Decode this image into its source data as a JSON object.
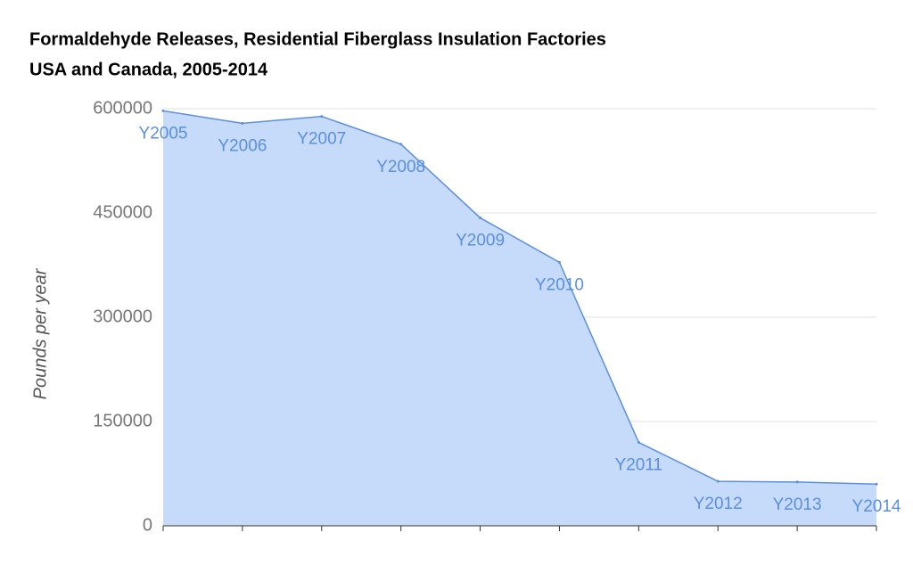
{
  "chart_data": {
    "type": "area",
    "title": "Formaldehyde Releases, Residential Fiberglass Insulation Factories",
    "subtitle": "USA and Canada, 2005-2014",
    "y_label": "Pounds per year",
    "categories": [
      "Y2005",
      "Y2006",
      "Y2007",
      "Y2008",
      "Y2009",
      "Y2010",
      "Y2011",
      "Y2012",
      "Y2013",
      "Y2014"
    ],
    "values": [
      597000,
      579000,
      589000,
      549000,
      443000,
      379000,
      120000,
      64000,
      63000,
      60000
    ],
    "color": "#5b8fe0",
    "fill_color": "#c6dafa",
    "ylim": [
      0,
      600000
    ],
    "yticks": [
      0,
      150000,
      300000,
      450000,
      600000
    ],
    "grid": true
  }
}
